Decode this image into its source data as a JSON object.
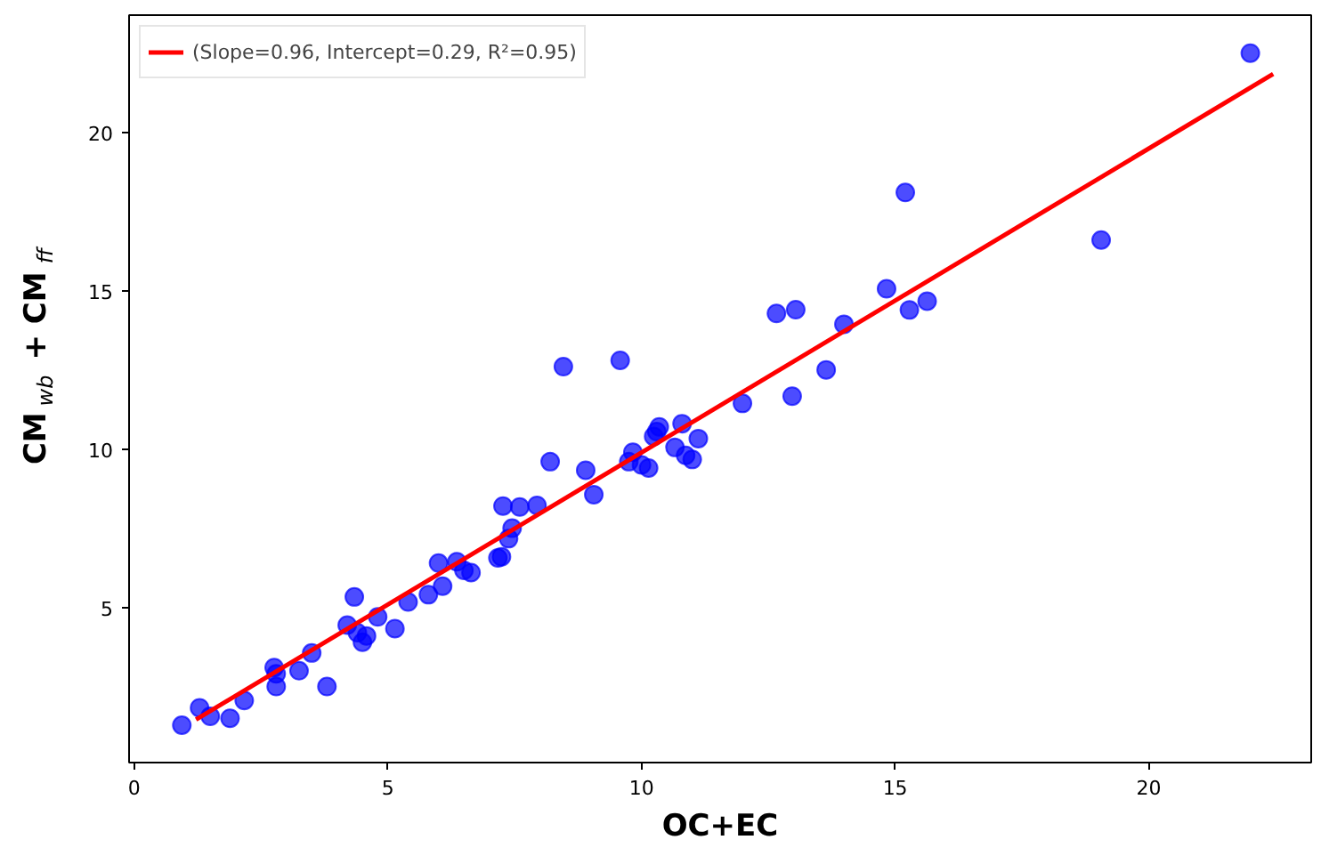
{
  "chart_data": {
    "type": "scatter",
    "xlabel": "OC+EC",
    "ylabel": "CM$_{wb}$ + CM$_{ff}$",
    "xlim": [
      -0.1,
      23.2
    ],
    "ylim": [
      0.1,
      23.7
    ],
    "xticks": [
      0,
      5,
      10,
      15,
      20
    ],
    "yticks": [
      5,
      10,
      15,
      20
    ],
    "grid": false,
    "legend": "top left",
    "series": [
      {
        "marker": "circle",
        "color": "#0000ff",
        "x": [
          0.94,
          1.29,
          1.5,
          1.89,
          2.17,
          2.76,
          2.8,
          2.8,
          3.25,
          3.5,
          3.8,
          4.2,
          4.34,
          4.4,
          4.5,
          4.58,
          4.8,
          5.14,
          5.4,
          5.8,
          6.0,
          6.08,
          6.36,
          6.5,
          6.64,
          7.17,
          7.24,
          7.27,
          7.38,
          7.45,
          7.6,
          7.94,
          8.2,
          8.46,
          8.9,
          9.06,
          9.58,
          9.75,
          9.83,
          10.0,
          10.14,
          10.24,
          10.3,
          10.35,
          10.66,
          10.8,
          10.87,
          11.0,
          11.12,
          11.99,
          12.66,
          12.97,
          13.04,
          13.64,
          13.99,
          14.83,
          15.2,
          15.28,
          15.63,
          19.06,
          22.0
        ],
        "values": [
          1.28,
          1.83,
          1.56,
          1.5,
          2.06,
          3.1,
          2.9,
          2.5,
          3.0,
          3.56,
          2.5,
          4.44,
          5.33,
          4.2,
          3.9,
          4.1,
          4.7,
          4.33,
          5.17,
          5.4,
          6.4,
          5.67,
          6.44,
          6.17,
          6.1,
          6.56,
          6.6,
          8.2,
          7.17,
          7.5,
          8.17,
          8.22,
          9.6,
          12.6,
          9.33,
          8.56,
          12.8,
          9.6,
          9.9,
          9.5,
          9.4,
          10.4,
          10.55,
          10.7,
          10.05,
          10.8,
          9.8,
          9.67,
          10.33,
          11.44,
          14.28,
          11.67,
          14.4,
          12.5,
          13.94,
          15.06,
          18.1,
          14.39,
          14.67,
          16.6,
          22.5
        ]
      },
      {
        "type": "line",
        "name": "(Slope=0.96, Intercept=0.29, R²=0.95)",
        "color": "#ff0000",
        "line_style": "solid",
        "x": [
          1.22,
          22.45
        ],
        "values": [
          1.46,
          21.84
        ]
      }
    ]
  }
}
